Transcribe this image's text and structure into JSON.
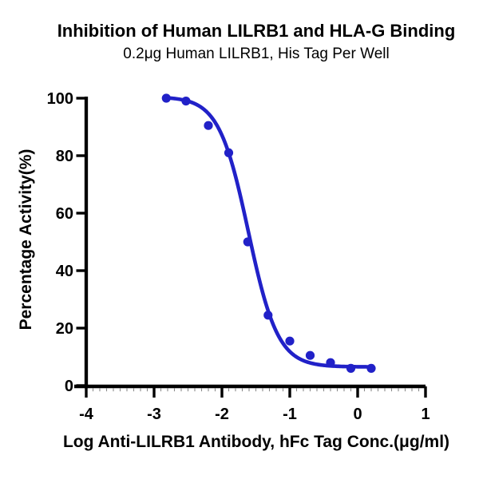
{
  "chart_data": {
    "type": "scatter",
    "title": "Inhibition of Human LILRB1 and HLA-G Binding",
    "subtitle": "0.2μg Human LILRB1, His Tag Per Well",
    "xlabel": "Log Anti-LILRB1 Antibody, hFc Tag Conc.(μg/ml)",
    "ylabel": "Percentage Activity(%)",
    "xlim": [
      -4,
      1
    ],
    "ylim": [
      0,
      100
    ],
    "x_ticks": [
      -4,
      -3,
      -2,
      -1,
      0,
      1
    ],
    "y_ticks": [
      0,
      20,
      40,
      60,
      80,
      100
    ],
    "x_minor_tick_step": 0.1,
    "grid": false,
    "legend": "none",
    "points": [
      {
        "x": -2.82,
        "y": 100
      },
      {
        "x": -2.53,
        "y": 99
      },
      {
        "x": -2.2,
        "y": 90.5
      },
      {
        "x": -1.9,
        "y": 81
      },
      {
        "x": -1.62,
        "y": 50
      },
      {
        "x": -1.32,
        "y": 24.5
      },
      {
        "x": -1.0,
        "y": 15.5
      },
      {
        "x": -0.7,
        "y": 10.5
      },
      {
        "x": -0.4,
        "y": 8
      },
      {
        "x": -0.1,
        "y": 6
      },
      {
        "x": 0.2,
        "y": 6
      }
    ],
    "fit_curve": {
      "model": "four-parameter-logistic",
      "top": 100.5,
      "bottom": 6.5,
      "log_ic50": -1.61,
      "hill_slope": 2.0,
      "x_start": -2.82,
      "x_end": 0.2
    },
    "colors": {
      "series": "#2121C8",
      "axis": "#000000",
      "minor_tick": "#8a8a8a",
      "text": "#000000",
      "background": "#FFFFFF"
    }
  }
}
